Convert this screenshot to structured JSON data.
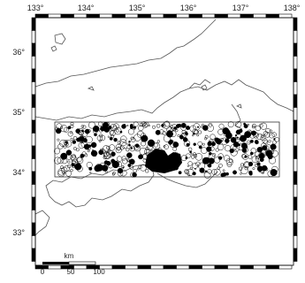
{
  "map": {
    "longitude_labels": [
      "133°",
      "134°",
      "135°",
      "136°",
      "137°",
      "138°"
    ],
    "latitude_labels": [
      "36°",
      "35°",
      "34°",
      "33°"
    ],
    "scale_bar": {
      "unit": "km",
      "ticks": [
        "0",
        "50",
        "100"
      ]
    },
    "colors": {
      "land_outline": "#555555",
      "event_marker": "#000000",
      "study_box": "#333333",
      "frame_dark": "#000000",
      "frame_light": "#ffffff"
    },
    "layers": [
      "coastline",
      "study-area-rectangle",
      "event-circles",
      "scale-bar",
      "graticule-frame"
    ]
  }
}
